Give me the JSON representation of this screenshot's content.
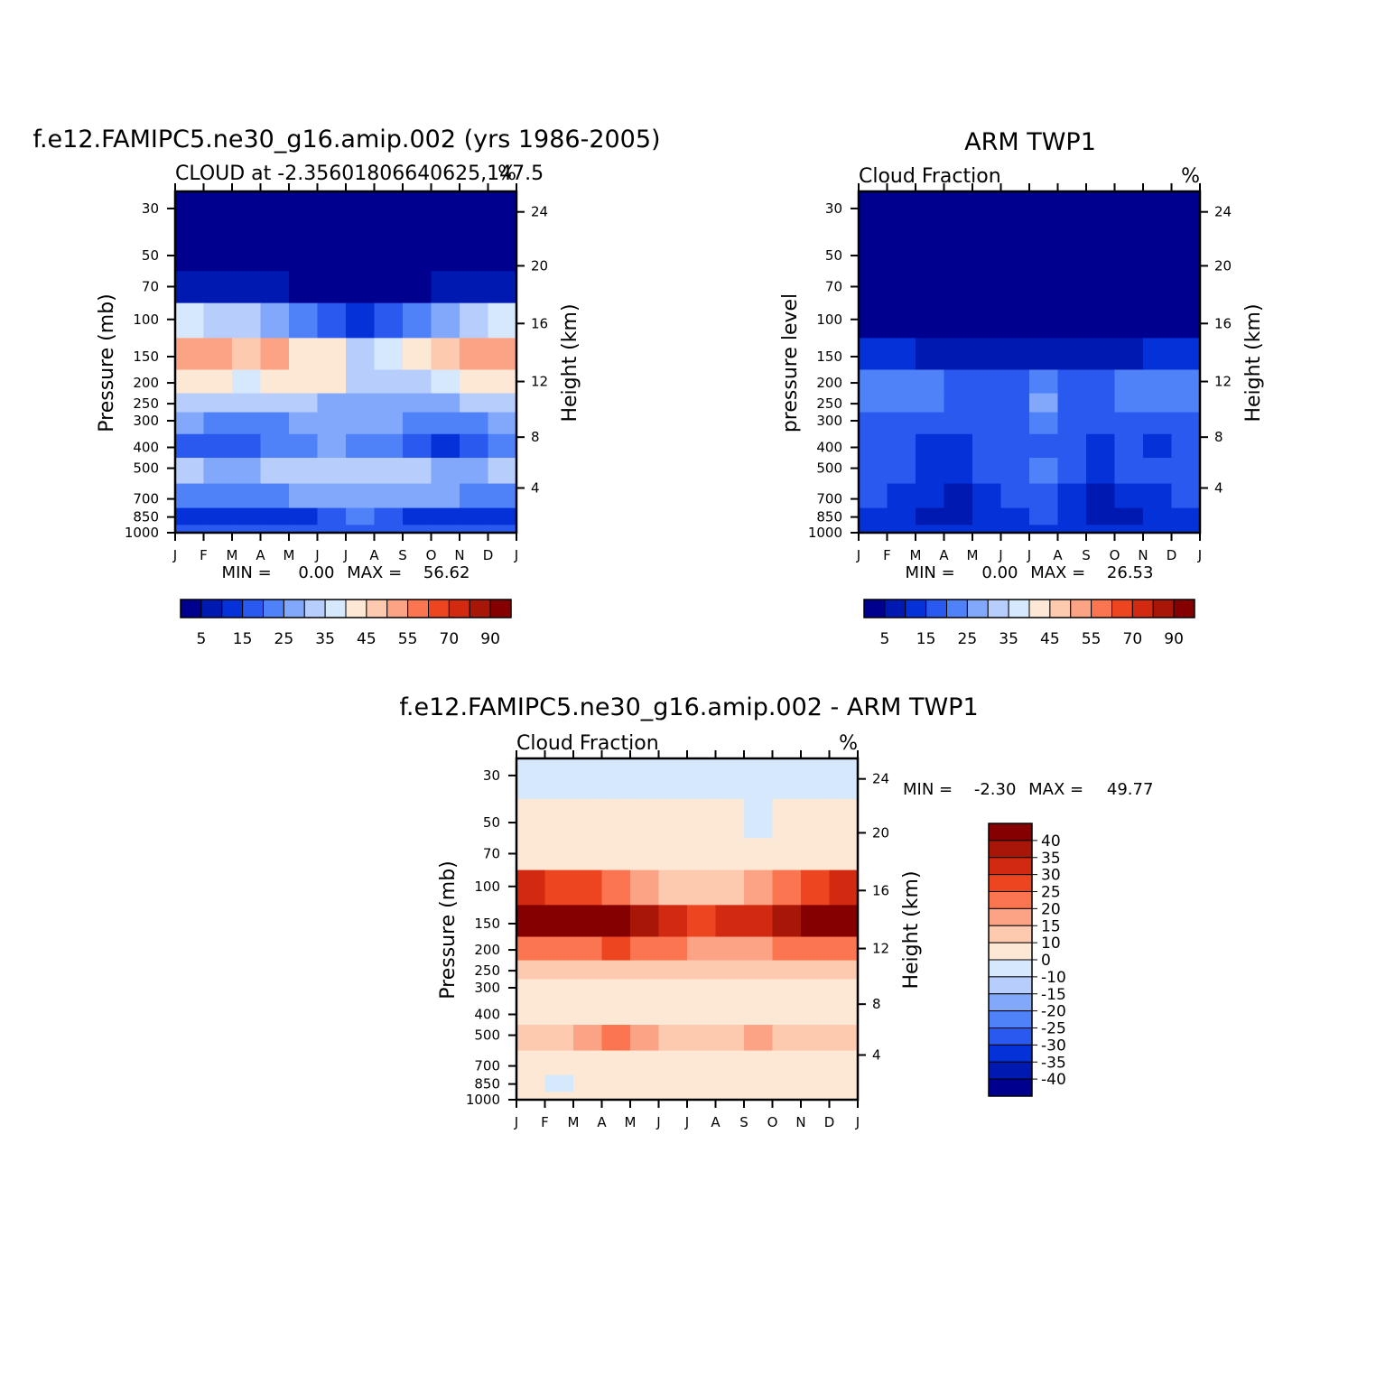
{
  "colors": {
    "abs_levels": [
      "#00008f",
      "#0019b0",
      "#0532d8",
      "#2a59f0",
      "#4f82f8",
      "#82a8fb",
      "#b7cdfb",
      "#d6e8fc",
      "#fde8d6",
      "#fdcab0",
      "#fca386",
      "#fa7550",
      "#ed4520",
      "#d12a10",
      "#a81608",
      "#850000"
    ],
    "diff_levels": [
      "#00008f",
      "#0019b0",
      "#0532d8",
      "#2a59f0",
      "#4f82f8",
      "#82a8fb",
      "#b7cdfb",
      "#d6e8fc",
      "#fde8d6",
      "#fdcab0",
      "#fca386",
      "#fa7550",
      "#ed4520",
      "#d12a10",
      "#a81608",
      "#850000"
    ]
  },
  "chart_data": [
    {
      "id": "model",
      "type": "heatmap",
      "title": "f.e12.FAMIPC5.ne30_g16.amip.002 (yrs 1986-2005)",
      "subtitle_left": "CLOUD at -2.35601806640625,147.5",
      "subtitle_right": "%",
      "ylabel": "Pressure (mb)",
      "y2label": "Height (km)",
      "x_ticks": [
        "J",
        "F",
        "M",
        "A",
        "M",
        "J",
        "J",
        "A",
        "S",
        "O",
        "N",
        "D",
        "J"
      ],
      "y_ticks": [
        "30",
        "50",
        "70",
        "100",
        "150",
        "200",
        "250",
        "300",
        "400",
        "500",
        "700",
        "850",
        "1000"
      ],
      "y2_ticks": [
        "24",
        "20",
        "16",
        "12",
        "8",
        "4"
      ],
      "stats": {
        "min_label": "MIN =",
        "min": "0.00",
        "max_label": "MAX =",
        "max": "56.62"
      },
      "colorbar_labels": [
        "5",
        "15",
        "25",
        "35",
        "45",
        "55",
        "70",
        "90"
      ],
      "levels": [
        30,
        50,
        70,
        100,
        150,
        200,
        250,
        300,
        400,
        500,
        700,
        850,
        1000
      ],
      "months": [
        "J",
        "F",
        "M",
        "A",
        "M",
        "J",
        "J",
        "A",
        "S",
        "O",
        "N",
        "D"
      ],
      "values": [
        [
          1,
          1,
          1,
          1,
          1,
          1,
          1,
          1,
          1,
          1,
          1,
          1
        ],
        [
          1,
          1,
          1,
          1,
          1,
          1,
          1,
          1,
          1,
          1,
          1,
          1
        ],
        [
          8,
          7,
          6,
          5,
          3,
          2,
          1,
          2,
          4,
          6,
          7,
          8
        ],
        [
          36,
          34,
          30,
          26,
          20,
          15,
          12,
          15,
          20,
          28,
          34,
          36
        ],
        [
          50,
          54,
          48,
          50,
          42,
          40,
          33,
          38,
          43,
          47,
          50,
          52
        ],
        [
          42,
          40,
          38,
          44,
          42,
          40,
          34,
          32,
          34,
          38,
          40,
          42
        ],
        [
          32,
          30,
          30,
          31,
          30,
          29,
          29,
          29,
          29,
          29,
          30,
          31
        ],
        [
          26,
          24,
          24,
          24,
          25,
          26,
          26,
          26,
          24,
          24,
          24,
          26
        ],
        [
          18,
          18,
          19,
          20,
          22,
          25,
          24,
          20,
          18,
          14,
          18,
          20
        ],
        [
          30,
          28,
          28,
          30,
          32,
          34,
          34,
          33,
          30,
          28,
          28,
          30
        ],
        [
          24,
          24,
          24,
          24,
          25,
          26,
          27,
          27,
          26,
          25,
          24,
          24
        ],
        [
          14,
          13,
          13,
          13,
          14,
          18,
          20,
          18,
          14,
          13,
          13,
          14
        ],
        [
          15,
          15,
          15,
          15,
          15,
          16,
          18,
          16,
          15,
          15,
          15,
          15
        ]
      ]
    },
    {
      "id": "obs",
      "type": "heatmap",
      "title": "ARM TWP1",
      "subtitle_left": "Cloud Fraction",
      "subtitle_right": "%",
      "ylabel": "pressure level",
      "y2label": "Height (km)",
      "x_ticks": [
        "J",
        "F",
        "M",
        "A",
        "M",
        "J",
        "J",
        "A",
        "S",
        "O",
        "N",
        "D",
        "J"
      ],
      "y_ticks": [
        "30",
        "50",
        "70",
        "100",
        "150",
        "200",
        "250",
        "300",
        "400",
        "500",
        "700",
        "850",
        "1000"
      ],
      "y2_ticks": [
        "24",
        "20",
        "16",
        "12",
        "8",
        "4"
      ],
      "stats": {
        "min_label": "MIN =",
        "min": "0.00",
        "max_label": "MAX =",
        "max": "26.53"
      },
      "colorbar_labels": [
        "5",
        "15",
        "25",
        "35",
        "45",
        "55",
        "70",
        "90"
      ],
      "levels": [
        30,
        50,
        70,
        100,
        150,
        200,
        250,
        300,
        400,
        500,
        700,
        850,
        1000
      ],
      "months": [
        "J",
        "F",
        "M",
        "A",
        "M",
        "J",
        "J",
        "A",
        "S",
        "O",
        "N",
        "D"
      ],
      "values": [
        [
          0,
          0,
          0,
          0,
          0,
          0,
          0,
          0,
          0,
          0,
          0,
          0
        ],
        [
          0,
          0,
          0,
          0,
          0,
          0,
          0,
          0,
          0,
          0,
          0,
          0
        ],
        [
          0,
          0,
          0,
          0,
          0,
          0,
          0,
          0,
          0,
          0,
          0,
          0
        ],
        [
          2,
          1,
          1,
          1,
          1,
          1,
          1,
          1,
          1,
          1,
          2,
          2
        ],
        [
          11,
          10,
          9,
          9,
          8,
          8,
          8,
          8,
          9,
          9,
          10,
          11
        ],
        [
          22,
          22,
          20,
          17,
          17,
          18,
          20,
          18,
          17,
          22,
          21,
          21
        ],
        [
          23,
          22,
          20,
          15,
          16,
          19,
          25,
          18,
          16,
          23,
          20,
          20
        ],
        [
          17,
          16,
          16,
          15,
          17,
          18,
          21,
          17,
          16,
          17,
          17,
          16
        ],
        [
          15,
          15,
          14,
          10,
          15,
          16,
          19,
          15,
          14,
          15,
          14,
          15
        ],
        [
          17,
          17,
          14,
          10,
          15,
          18,
          20,
          16,
          14,
          15,
          16,
          16
        ],
        [
          15,
          14,
          10,
          8,
          12,
          15,
          16,
          14,
          9,
          10,
          13,
          15
        ],
        [
          14,
          13,
          8,
          8,
          12,
          14,
          15,
          13,
          8,
          9,
          12,
          14
        ],
        [
          12,
          12,
          10,
          10,
          11,
          12,
          12,
          12,
          11,
          11,
          12,
          12
        ]
      ]
    },
    {
      "id": "diff",
      "type": "heatmap",
      "title": "f.e12.FAMIPC5.ne30_g16.amip.002 - ARM TWP1",
      "subtitle_left": "Cloud Fraction",
      "subtitle_right": "%",
      "ylabel": "Pressure (mb)",
      "y2label": "Height (km)",
      "x_ticks": [
        "J",
        "F",
        "M",
        "A",
        "M",
        "J",
        "J",
        "A",
        "S",
        "O",
        "N",
        "D",
        "J"
      ],
      "y_ticks": [
        "30",
        "50",
        "70",
        "100",
        "150",
        "200",
        "250",
        "300",
        "400",
        "500",
        "700",
        "850",
        "1000"
      ],
      "y2_ticks": [
        "24",
        "20",
        "16",
        "12",
        "8",
        "4"
      ],
      "stats": {
        "min_label": "MIN =",
        "min": "-2.30",
        "max_label": "MAX =",
        "max": "49.77"
      },
      "colorbar_labels": [
        "40",
        "35",
        "30",
        "25",
        "20",
        "15",
        "10",
        "0",
        "-10",
        "-15",
        "-20",
        "-25",
        "-30",
        "-35",
        "-40"
      ],
      "levels": [
        30,
        50,
        70,
        100,
        150,
        200,
        250,
        300,
        400,
        500,
        700,
        850,
        1000
      ],
      "months": [
        "J",
        "F",
        "M",
        "A",
        "M",
        "J",
        "J",
        "A",
        "S",
        "O",
        "N",
        "D"
      ],
      "values": [
        [
          -1,
          -1,
          -1,
          -1,
          -1,
          -1,
          -1,
          -1,
          -1,
          -1,
          -1,
          -1
        ],
        [
          0,
          0,
          0,
          0,
          0,
          0,
          0,
          0,
          -1,
          0,
          0,
          0
        ],
        [
          3,
          3,
          3,
          3,
          3,
          3,
          3,
          3,
          3,
          3,
          3,
          3
        ],
        [
          30,
          28,
          25,
          22,
          18,
          12,
          10,
          12,
          16,
          22,
          28,
          33
        ],
        [
          42,
          44,
          40,
          42,
          36,
          33,
          28,
          30,
          34,
          38,
          41,
          44
        ],
        [
          22,
          22,
          20,
          26,
          24,
          22,
          18,
          15,
          17,
          20,
          22,
          24
        ],
        [
          12,
          12,
          12,
          14,
          14,
          12,
          10,
          10,
          10,
          10,
          10,
          12
        ],
        [
          8,
          8,
          8,
          9,
          9,
          8,
          6,
          6,
          6,
          6,
          6,
          7
        ],
        [
          9,
          9,
          9,
          8,
          4,
          7,
          8,
          6,
          6,
          6,
          6,
          9
        ],
        [
          13,
          13,
          15,
          20,
          15,
          12,
          12,
          12,
          15,
          12,
          12,
          13
        ],
        [
          5,
          5,
          5,
          5,
          5,
          5,
          5,
          5,
          5,
          5,
          5,
          5
        ],
        [
          3,
          -2,
          2,
          3,
          3,
          3,
          3,
          3,
          3,
          3,
          3,
          3
        ],
        [
          4,
          4,
          4,
          4,
          4,
          4,
          4,
          4,
          4,
          4,
          4,
          4
        ]
      ]
    }
  ]
}
